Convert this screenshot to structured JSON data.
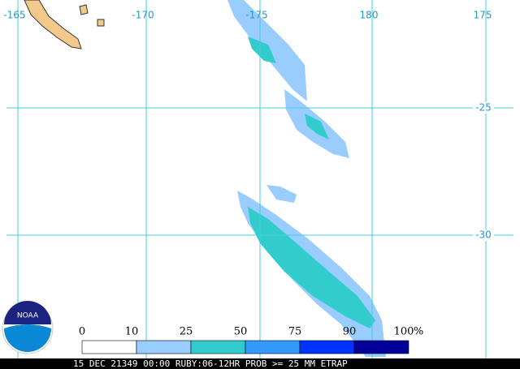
{
  "map": {
    "lon_labels": [
      "-165",
      "-170",
      "-175",
      "180",
      "175"
    ],
    "lat_labels": [
      "-25",
      "-30"
    ],
    "logo": "NOAA",
    "legend": {
      "ticks": [
        0,
        10,
        25,
        50,
        75,
        90,
        100
      ],
      "unit": "%",
      "colors": [
        "#ffffff",
        "#99ccff",
        "#33cccc",
        "#3399ff",
        "#0033ff",
        "#000099"
      ]
    },
    "caption": "15 DEC 21349 00:00 RUBY:06-12HR PROB >= 25 MM ETRAP"
  }
}
